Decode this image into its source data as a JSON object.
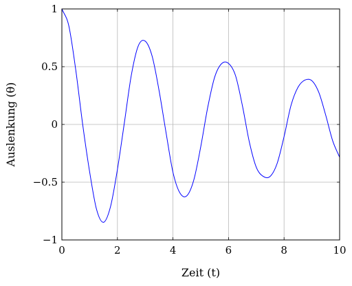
{
  "chart_data": {
    "type": "line",
    "title": "",
    "xlabel": "Zeit (t)",
    "ylabel": "Auslenkung (θ)",
    "xlim": [
      0,
      10
    ],
    "ylim": [
      -1,
      1
    ],
    "grid": true,
    "x_ticks": [
      0,
      2,
      4,
      6,
      8,
      10
    ],
    "x_tick_labels": [
      "0",
      "2",
      "4",
      "6",
      "8",
      "10"
    ],
    "y_ticks": [
      -1,
      -0.5,
      0,
      0.5,
      1
    ],
    "y_tick_labels": [
      "−1",
      "−0.5",
      "0",
      "0.5",
      "1"
    ],
    "series": [
      {
        "color": "#0000ff",
        "x": [
          0,
          0.25,
          0.5,
          0.75,
          1,
          1.25,
          1.5,
          1.75,
          2,
          2.25,
          2.5,
          2.75,
          3,
          3.25,
          3.5,
          3.75,
          4,
          4.25,
          4.5,
          4.75,
          5,
          5.25,
          5.5,
          5.75,
          6,
          6.25,
          6.5,
          6.75,
          7,
          7.25,
          7.5,
          7.75,
          8,
          8.25,
          8.5,
          8.75,
          9,
          9.25,
          9.5,
          9.75,
          10
        ],
        "y": [
          1,
          0.8535,
          0.4711,
          -0.0018,
          -0.4112,
          -0.7369,
          -0.8472,
          -0.7126,
          -0.3897,
          0.0148,
          0.4261,
          0.6798,
          0.7215,
          0.5905,
          0.2923,
          -0.0701,
          -0.4148,
          -0.5932,
          -0.6174,
          -0.4807,
          -0.1926,
          0.1465,
          0.4088,
          0.5259,
          0.5285,
          0.4241,
          0.1623,
          -0.1528,
          -0.3712,
          -0.4497,
          -0.4495,
          -0.3377,
          -0.1047,
          0.1652,
          0.3212,
          0.3842,
          0.3787,
          0.2776,
          0.0795,
          -0.1416,
          -0.2843
        ]
      }
    ]
  }
}
